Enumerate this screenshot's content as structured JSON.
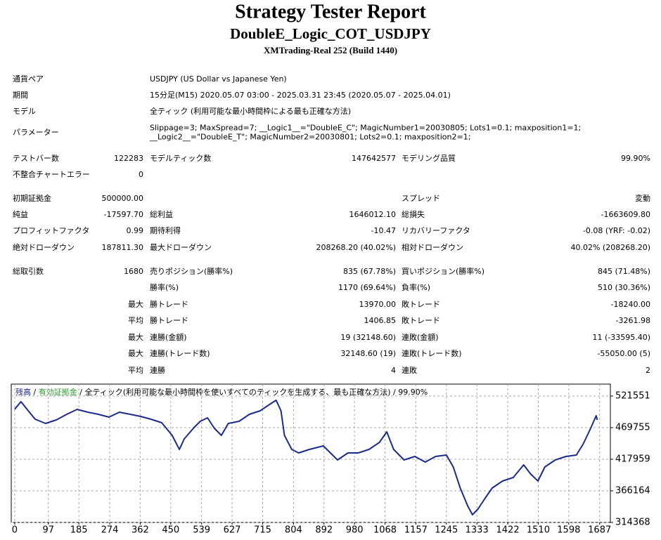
{
  "header": {
    "title": "Strategy Tester Report",
    "subtitle": "DoubleE_Logic_COT_USDJPY",
    "server": "XMTrading-Real 252 (Build 1440)"
  },
  "info": [
    {
      "label": "通貨ペア",
      "value": [
        "USDJPY (US Dollar vs Japanese Yen)"
      ]
    },
    {
      "label": "期間",
      "value": [
        "15分足(M15) 2020.05.07 03:00 - 2025.03.31 23:45 (2020.05.07 - 2025.04.01)"
      ]
    },
    {
      "label": "モデル",
      "value": [
        "全ティック (利用可能な最小時間枠による最も正確な方法)"
      ]
    },
    {
      "label": "パラメーター",
      "value": [
        "Slippage=3; MaxSpread=7; __Logic1__=\"DoubleE_C\"; MagicNumber1=20030805; Lots1=0.1; maxposition1=1;",
        "__Logic2__=\"DoubleE_T\"; MagicNumber2=20030801; Lots2=0.1; maxposition2=1;"
      ]
    }
  ],
  "stats": [
    [
      "テストバー数",
      "122283",
      "モデルティック数",
      "147642577",
      "モデリング品質",
      "99.90%"
    ],
    [
      "不整合チャートエラー",
      "0",
      null,
      null,
      null,
      null
    ],
    [
      "初期証拠金",
      "500000.00",
      null,
      null,
      "スプレッド",
      "変動"
    ],
    [
      "純益",
      "-17597.70",
      "総利益",
      "1646012.10",
      "総損失",
      "-1663609.80"
    ],
    [
      "プロフィットファクタ",
      "0.99",
      "期待利得",
      "-10.47",
      "リカバリーファクタ",
      "-0.08 (YRF: -0.02)"
    ],
    [
      "絶対ドローダウン",
      "187811.30",
      "最大ドローダウン",
      "208268.20 (40.02%)",
      "相対ドローダウン",
      "40.02% (208268.20)"
    ],
    [
      "総取引数",
      "1680",
      "売りポジション(勝率%)",
      "835 (67.78%)",
      "買いポジション(勝率%)",
      "845 (71.48%)"
    ],
    [
      null,
      null,
      "勝率(%)",
      "1170 (69.64%)",
      "負率(%)",
      "510 (30.36%)"
    ],
    [
      null,
      "最大",
      "勝トレード",
      "13970.00",
      "敗トレード",
      "-18240.00"
    ],
    [
      null,
      "平均",
      "勝トレード",
      "1406.85",
      "敗トレード",
      "-3261.98"
    ],
    [
      null,
      "最大",
      "連勝(金額)",
      "19 (32148.60)",
      "連敗(金額)",
      "11 (-33595.40)"
    ],
    [
      null,
      "最大",
      "連勝(トレード数)",
      "32148.60 (19)",
      "連敗(トレード数)",
      "-55050.00 (5)"
    ],
    [
      null,
      "平均",
      "連勝",
      "4",
      "連敗",
      "2"
    ]
  ],
  "chart_data": {
    "type": "line",
    "separator": "/",
    "equity_label": "有効証拠金",
    "equity_color": "#2e9e2e",
    "legend_note": "全ティック(利用可能な最小時間枠を使いすべてのティックを生成する、最も正確な方法)",
    "quality": "99.90%",
    "x": [
      0,
      18,
      39,
      59,
      89,
      120,
      150,
      180,
      211,
      241,
      272,
      302,
      333,
      363,
      393,
      424,
      454,
      475,
      489,
      515,
      535,
      556,
      576,
      596,
      616,
      647,
      677,
      708,
      738,
      754,
      768,
      778,
      799,
      819,
      850,
      890,
      931,
      961,
      991,
      1022,
      1052,
      1073,
      1093,
      1123,
      1154,
      1184,
      1214,
      1245,
      1265,
      1285,
      1306,
      1320,
      1336,
      1356,
      1377,
      1407,
      1438,
      1468,
      1488,
      1509,
      1529,
      1559,
      1590,
      1620,
      1640,
      1661,
      1677,
      1680
    ],
    "series": [
      {
        "name": "残高",
        "color": "#1c2a8c",
        "values": [
          500000,
          512300,
          497400,
          483600,
          476700,
          482400,
          491600,
          499700,
          495100,
          491600,
          487000,
          495100,
          491600,
          488200,
          483600,
          477800,
          457100,
          434100,
          451300,
          468600,
          480100,
          485900,
          468600,
          457100,
          476700,
          480100,
          491600,
          497400,
          508900,
          514600,
          497400,
          457100,
          434100,
          428300,
          434100,
          439800,
          416800,
          428300,
          428300,
          434100,
          445600,
          462900,
          434100,
          416800,
          422600,
          413400,
          422600,
          424900,
          405300,
          370800,
          342000,
          327000,
          336200,
          353500,
          370800,
          382300,
          388000,
          408800,
          393800,
          382300,
          405300,
          416800,
          422600,
          424900,
          443300,
          468600,
          489300,
          482402
        ]
      }
    ],
    "xlim": [
      -10,
      1718
    ],
    "ylim": [
      314368,
      541100
    ],
    "xticks": [
      0,
      97,
      185,
      274,
      362,
      450,
      539,
      627,
      715,
      804,
      892,
      980,
      1068,
      1157,
      1245,
      1333,
      1422,
      1510,
      1598,
      1687
    ],
    "yticks": [
      314368,
      366164,
      417959,
      469755,
      521551
    ],
    "grid": true
  }
}
